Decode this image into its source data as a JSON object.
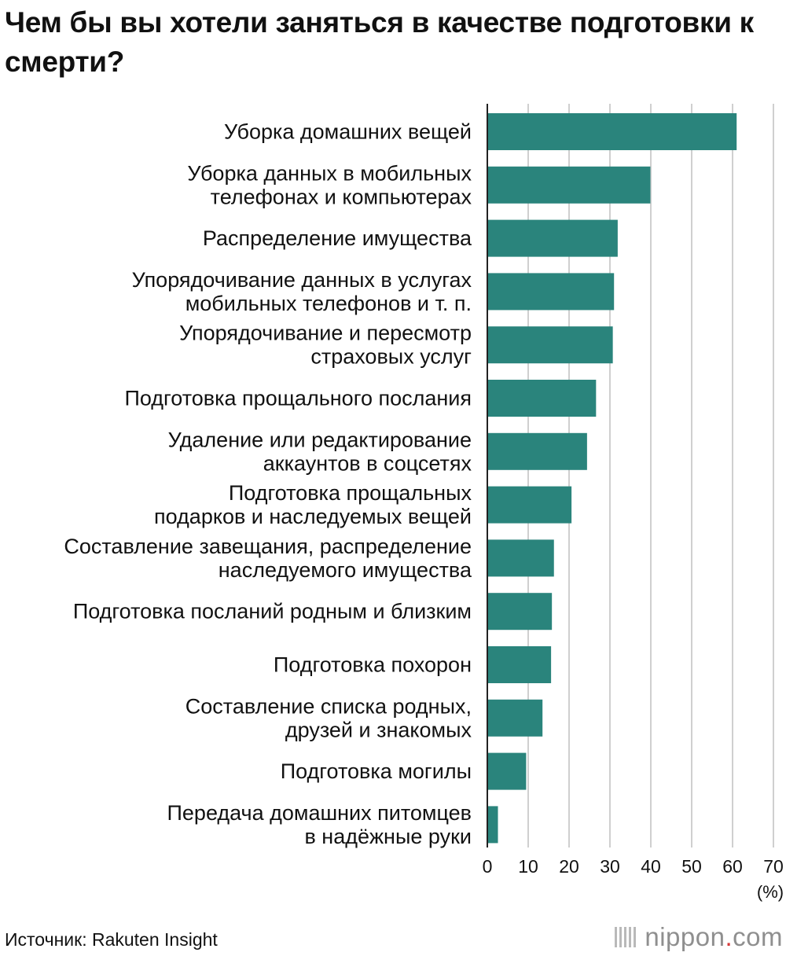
{
  "title": "Чем бы вы хотели заняться в качестве подготовки к смерти?",
  "source": "Источник: Rakuten Insight",
  "brand": {
    "name": "nippon",
    "dot": ".",
    "suffix": "com"
  },
  "colors": {
    "bar": "#2a847c",
    "grid": "#cfcfcf",
    "axis": "#222222"
  },
  "chart_data": {
    "type": "bar",
    "orientation": "horizontal",
    "unit_label": "(%)",
    "xlim": [
      0,
      70
    ],
    "ticks": [
      0,
      10,
      20,
      30,
      40,
      50,
      60,
      70
    ],
    "grid": true,
    "categories": [
      [
        "Уборка домашних вещей"
      ],
      [
        "Уборка данных в мобильных",
        "телефонах и компьютерах"
      ],
      [
        "Распределение имущества"
      ],
      [
        "Упорядочивание данных в услугах",
        "мобильных телефонов и т. п."
      ],
      [
        "Упорядочивание и пересмотр",
        "страховых услуг"
      ],
      [
        "Подготовка прощального послания"
      ],
      [
        "Удаление или редактирование",
        "аккаунтов в соцсетях"
      ],
      [
        "Подготовка прощальных",
        "подарков и наследуемых вещей"
      ],
      [
        "Составление завещания, распределение",
        "наследуемого имущества"
      ],
      [
        "Подготовка посланий родным и близким"
      ],
      [
        "Подготовка похорон"
      ],
      [
        "Составление списка родных,",
        "друзей и знакомых"
      ],
      [
        "Подготовка могилы"
      ],
      [
        "Передача домашних питомцев",
        "в надёжные руки"
      ]
    ],
    "values": [
      61.0,
      39.9,
      31.9,
      31.0,
      30.7,
      26.6,
      24.4,
      20.6,
      16.3,
      15.8,
      15.6,
      13.5,
      9.5,
      2.6
    ]
  }
}
